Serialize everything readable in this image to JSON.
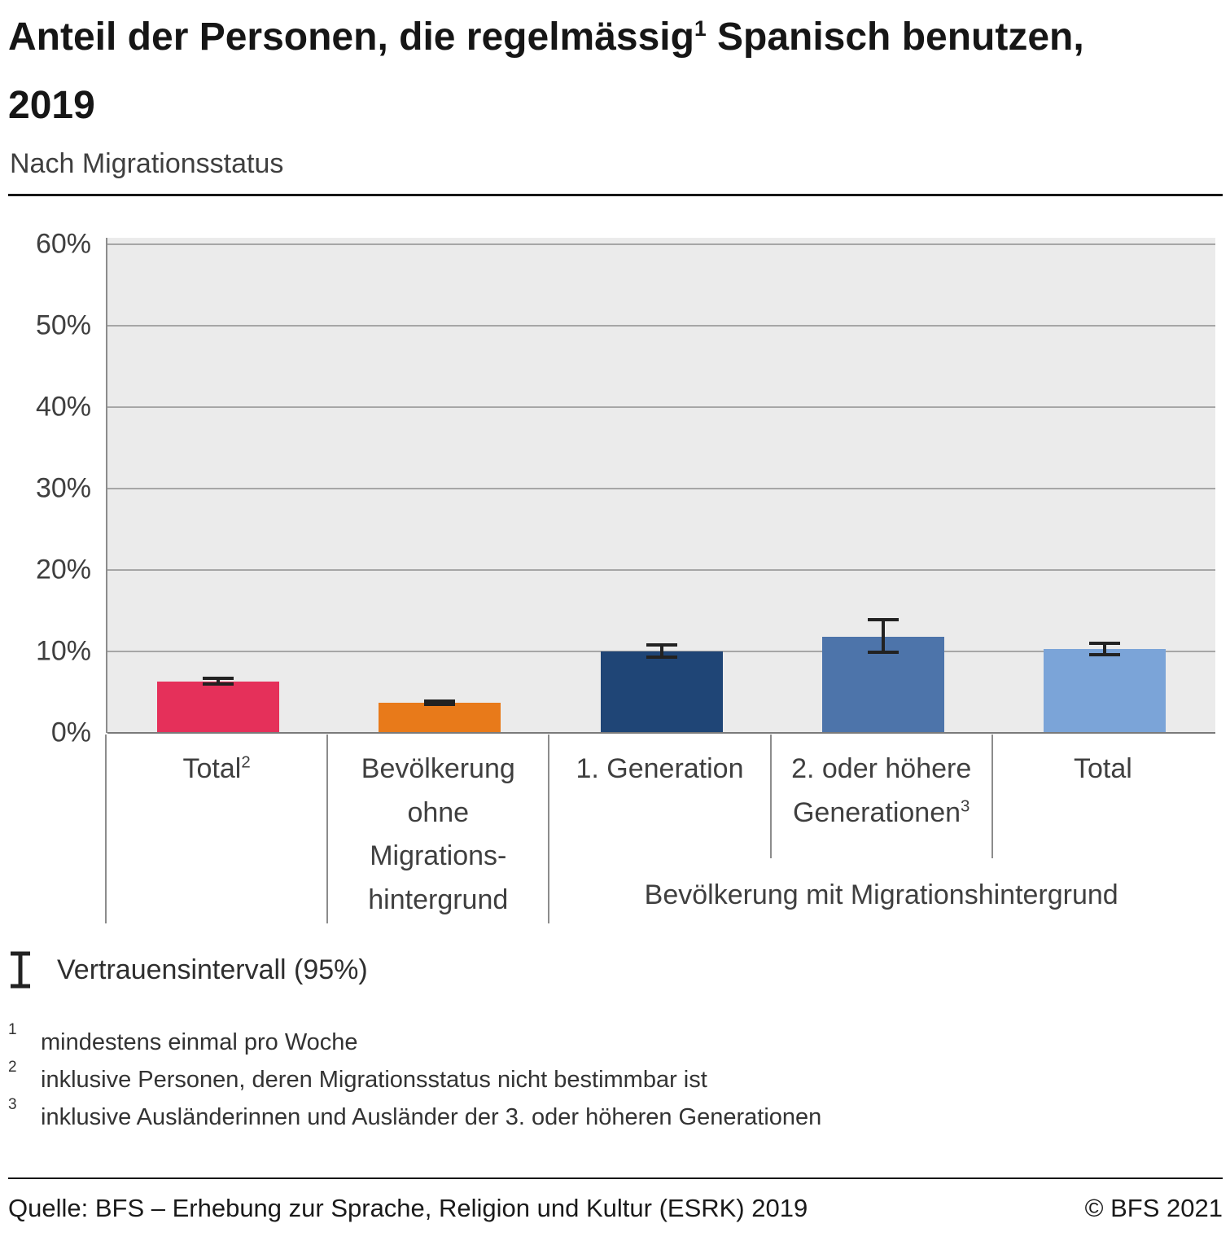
{
  "header": {
    "title_part1": "Anteil der Personen, die regelmässig",
    "title_sup": "1",
    "title_part2": " Spanisch benutzen,",
    "title_line2": "2019",
    "subtitle": "Nach Migrationsstatus"
  },
  "chart_data": {
    "type": "bar",
    "title": "Anteil der Personen, die regelmässig Spanisch benutzen, 2019",
    "subtitle": "Nach Migrationsstatus",
    "unit": "%",
    "ylim": [
      0,
      60
    ],
    "ytick_step": 10,
    "ytick_labels": [
      "0%",
      "10%",
      "20%",
      "30%",
      "40%",
      "50%",
      "60%"
    ],
    "grid": true,
    "plot_background": "#ebebeb",
    "gridline_color": "#a6a6a6",
    "axis_color": "#8c8c8c",
    "errorbar_color": "#222222",
    "categories": [
      {
        "id": "total",
        "label_lines": [
          "Total"
        ],
        "label_sup": "2",
        "value": 6.3,
        "ci": [
          5.8,
          6.9
        ],
        "color": "#e5305a"
      },
      {
        "id": "bevoelkerung-ohne-migrationshintergrund",
        "label_lines": [
          "Bevölkerung",
          "ohne",
          "Migrations-",
          "hintergrund"
        ],
        "label_sup": "",
        "value": 3.7,
        "ci": [
          3.3,
          4.1
        ],
        "color": "#e87a1a"
      },
      {
        "id": "erste-generation",
        "label_lines": [
          "1. Generation"
        ],
        "label_sup": "",
        "value": 10.0,
        "ci": [
          9.1,
          11.0
        ],
        "color": "#1f4576"
      },
      {
        "id": "zweite-oder-hoehere-generationen",
        "label_lines": [
          "2. oder höhere",
          "Generationen"
        ],
        "label_sup": "3",
        "value": 11.8,
        "ci": [
          9.7,
          14.1
        ],
        "color": "#4d74aa"
      },
      {
        "id": "total-mit-migrationshintergrund",
        "label_lines": [
          "Total"
        ],
        "label_sup": "",
        "value": 10.3,
        "ci": [
          9.4,
          11.2
        ],
        "color": "#7ba4d8"
      }
    ],
    "groups": [
      {
        "label": "Bevölkerung mit Migrationshintergrund",
        "from": 2,
        "to": 4
      }
    ],
    "legend": [
      {
        "symbol": "error-bar",
        "label": "Vertrauensintervall (95%)"
      }
    ]
  },
  "footnotes": [
    {
      "sup": "1",
      "text": "mindestens einmal pro Woche"
    },
    {
      "sup": "2",
      "text": "inklusive Personen, deren Migrationsstatus nicht bestimmbar ist"
    },
    {
      "sup": "3",
      "text": "inklusive Ausländerinnen und Ausländer der 3. oder höheren Generationen"
    }
  ],
  "footer": {
    "source": "Quelle: BFS – Erhebung zur Sprache, Religion und Kultur (ESRK) 2019",
    "copyright": "© BFS 2021"
  }
}
